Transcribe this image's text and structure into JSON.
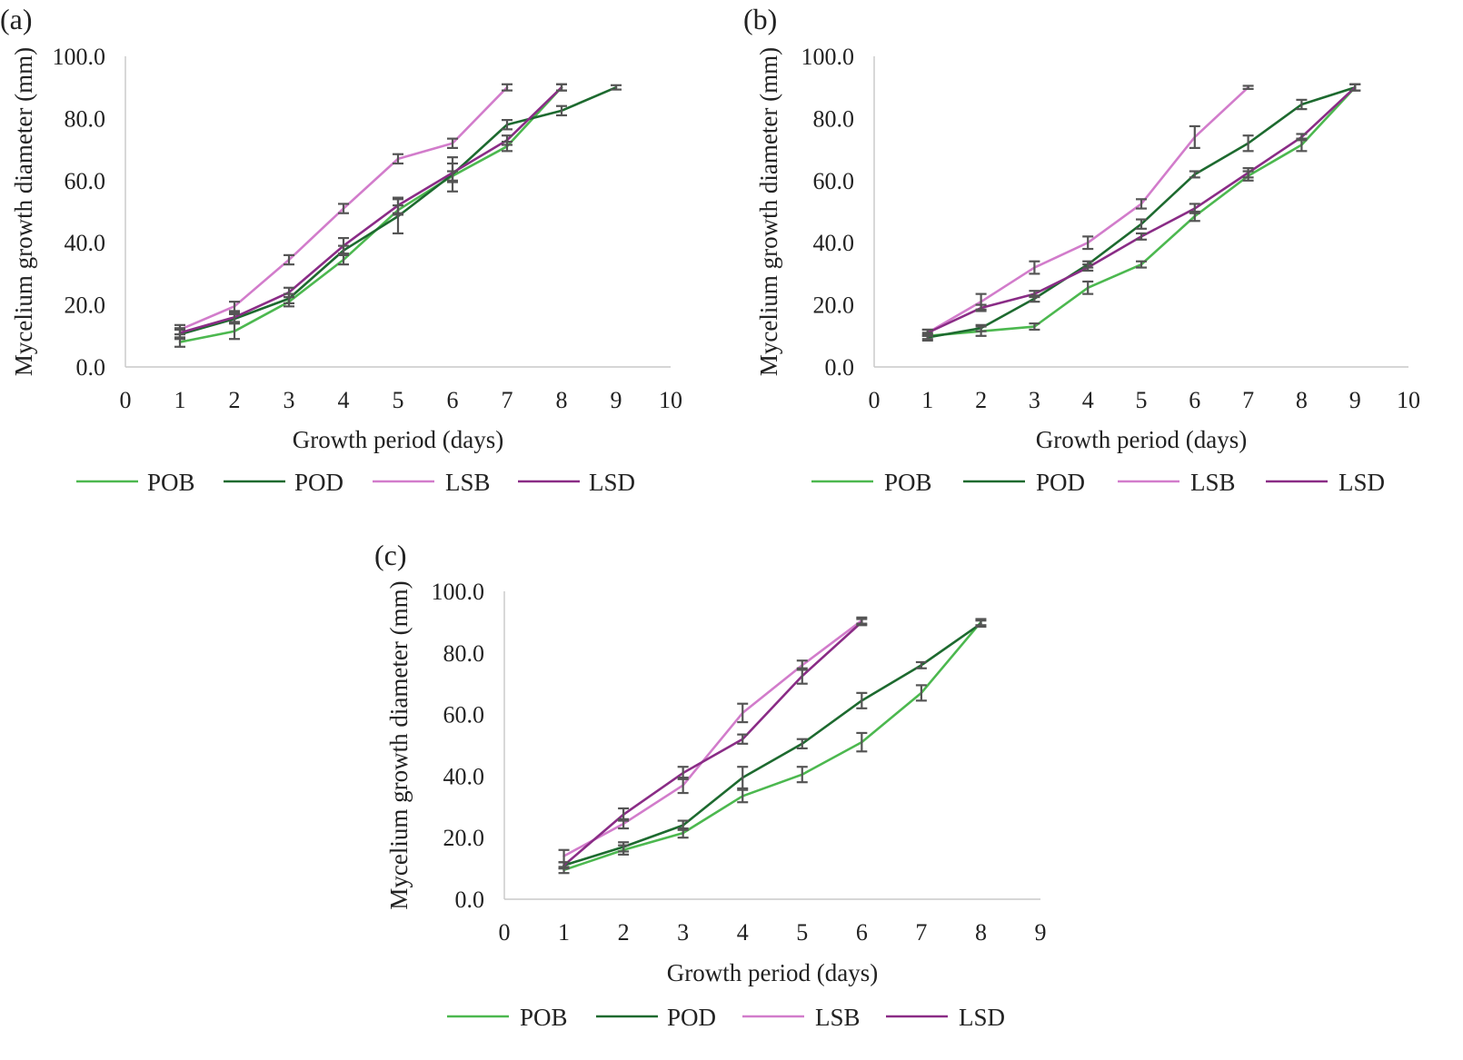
{
  "colors": {
    "POB": "#4cb84f",
    "POD": "#1d6a2f",
    "LSB": "#d27ccb",
    "LSD": "#8a2c86",
    "errorbar": "#555555"
  },
  "chart_data": [
    {
      "type": "line",
      "panel_label": "(a)",
      "xlabel": "Growth period (days)",
      "ylabel": "Mycelium growth diameter (mm)",
      "xlim": [
        0,
        10
      ],
      "ylim": [
        0,
        100
      ],
      "x_ticks": [
        "0",
        "1",
        "2",
        "3",
        "4",
        "5",
        "6",
        "7",
        "8",
        "9",
        "10"
      ],
      "y_ticks": [
        "0.0",
        "20.0",
        "40.0",
        "60.0",
        "80.0",
        "100.0"
      ],
      "legend": [
        "POB",
        "POD",
        "LSB",
        "LSD"
      ],
      "legend_position": "bottom",
      "series": [
        {
          "name": "POB",
          "x": [
            1,
            2,
            3,
            4,
            5,
            6,
            7,
            8
          ],
          "values": [
            8,
            11.5,
            21,
            34.5,
            50.5,
            61.5,
            71,
            90
          ],
          "errors": [
            1.5,
            2.5,
            1.5,
            1.5,
            1.5,
            1.5,
            1.5,
            1
          ]
        },
        {
          "name": "POD",
          "x": [
            1,
            2,
            3,
            4,
            5,
            6,
            7,
            8,
            9
          ],
          "values": [
            10.5,
            15.5,
            22,
            37.5,
            48.5,
            62,
            78,
            82.5,
            90
          ],
          "errors": [
            1.5,
            1.5,
            1.5,
            1.5,
            5.5,
            5.5,
            1.5,
            1.5,
            0.7
          ]
        },
        {
          "name": "LSB",
          "x": [
            1,
            2,
            3,
            4,
            5,
            6,
            7
          ],
          "values": [
            12,
            19.5,
            34.5,
            51,
            67,
            72,
            90
          ],
          "errors": [
            1.5,
            1.5,
            1.5,
            1.5,
            1.5,
            1.5,
            1
          ]
        },
        {
          "name": "LSD",
          "x": [
            1,
            2,
            3,
            4,
            5,
            6,
            7,
            8
          ],
          "values": [
            11,
            16,
            24,
            39,
            52,
            62.5,
            73,
            90
          ],
          "errors": [
            1.5,
            1.5,
            1.5,
            2.5,
            2.5,
            3,
            1.5,
            1
          ]
        }
      ]
    },
    {
      "type": "line",
      "panel_label": "(b)",
      "xlabel": "Growth period (days)",
      "ylabel": "Mycelium growth diameter (mm)",
      "xlim": [
        0,
        10
      ],
      "ylim": [
        0,
        100
      ],
      "x_ticks": [
        "0",
        "1",
        "2",
        "3",
        "4",
        "5",
        "6",
        "7",
        "8",
        "9",
        "10"
      ],
      "y_ticks": [
        "0.0",
        "20.0",
        "40.0",
        "60.0",
        "80.0",
        "100.0"
      ],
      "legend": [
        "POB",
        "POD",
        "LSB",
        "LSD"
      ],
      "legend_position": "bottom",
      "series": [
        {
          "name": "POB",
          "x": [
            1,
            2,
            3,
            4,
            5,
            6,
            7,
            8,
            9
          ],
          "values": [
            10,
            11.5,
            13,
            25.5,
            33,
            48.5,
            61.5,
            71.5,
            90
          ],
          "errors": [
            1,
            1.5,
            1,
            2,
            1,
            1.5,
            1.5,
            2,
            1
          ]
        },
        {
          "name": "POD",
          "x": [
            1,
            2,
            3,
            4,
            5,
            6,
            7,
            8,
            9
          ],
          "values": [
            9.5,
            12.5,
            22,
            33,
            46,
            62,
            72,
            84.5,
            90
          ],
          "errors": [
            1,
            1,
            1,
            1,
            1.5,
            1,
            2.5,
            1.5,
            1
          ]
        },
        {
          "name": "LSB",
          "x": [
            1,
            2,
            3,
            4,
            5,
            6,
            7
          ],
          "values": [
            11,
            21,
            32,
            40,
            52.5,
            74,
            90
          ],
          "errors": [
            1,
            2.5,
            2,
            2,
            1.5,
            3.5,
            0.5
          ]
        },
        {
          "name": "LSD",
          "x": [
            1,
            2,
            3,
            4,
            5,
            6,
            7,
            8,
            9
          ],
          "values": [
            11,
            19,
            23.5,
            32,
            42,
            51,
            62.5,
            74,
            90
          ],
          "errors": [
            1,
            1,
            1,
            1,
            1,
            1.5,
            1.5,
            1,
            1
          ]
        }
      ]
    },
    {
      "type": "line",
      "panel_label": "(c)",
      "xlabel": "Growth period (days)",
      "ylabel": "Mycelium growth diameter (mm)",
      "xlim": [
        0,
        9
      ],
      "ylim": [
        0,
        100
      ],
      "x_ticks": [
        "0",
        "1",
        "2",
        "3",
        "4",
        "5",
        "6",
        "7",
        "8",
        "9"
      ],
      "y_ticks": [
        "0.0",
        "20.0",
        "40.0",
        "60.0",
        "80.0",
        "100.0"
      ],
      "legend": [
        "POB",
        "POD",
        "LSB",
        "LSD"
      ],
      "legend_position": "bottom",
      "series": [
        {
          "name": "POB",
          "x": [
            1,
            2,
            3,
            4,
            5,
            6,
            7,
            8
          ],
          "values": [
            9.5,
            16,
            21.5,
            33.5,
            40.5,
            51,
            67,
            90
          ],
          "errors": [
            1,
            1.5,
            1.5,
            2,
            2.5,
            3,
            2.5,
            1
          ]
        },
        {
          "name": "POD",
          "x": [
            1,
            2,
            3,
            4,
            5,
            6,
            7,
            8
          ],
          "values": [
            11,
            17,
            24,
            39.5,
            50.5,
            64.5,
            76,
            89.5
          ],
          "errors": [
            1,
            1.5,
            1.5,
            3.5,
            1.5,
            2.5,
            1,
            1
          ]
        },
        {
          "name": "LSB",
          "x": [
            1,
            2,
            3,
            4,
            5,
            6
          ],
          "values": [
            14,
            24.5,
            37,
            60.5,
            76,
            90.5
          ],
          "errors": [
            2,
            1.5,
            2.5,
            3,
            1.5,
            1
          ]
        },
        {
          "name": "LSD",
          "x": [
            1,
            2,
            3,
            4,
            5,
            6
          ],
          "values": [
            11,
            27.5,
            41,
            52,
            72.5,
            90
          ],
          "errors": [
            1,
            2,
            2,
            1.5,
            2.5,
            1
          ]
        }
      ]
    }
  ]
}
